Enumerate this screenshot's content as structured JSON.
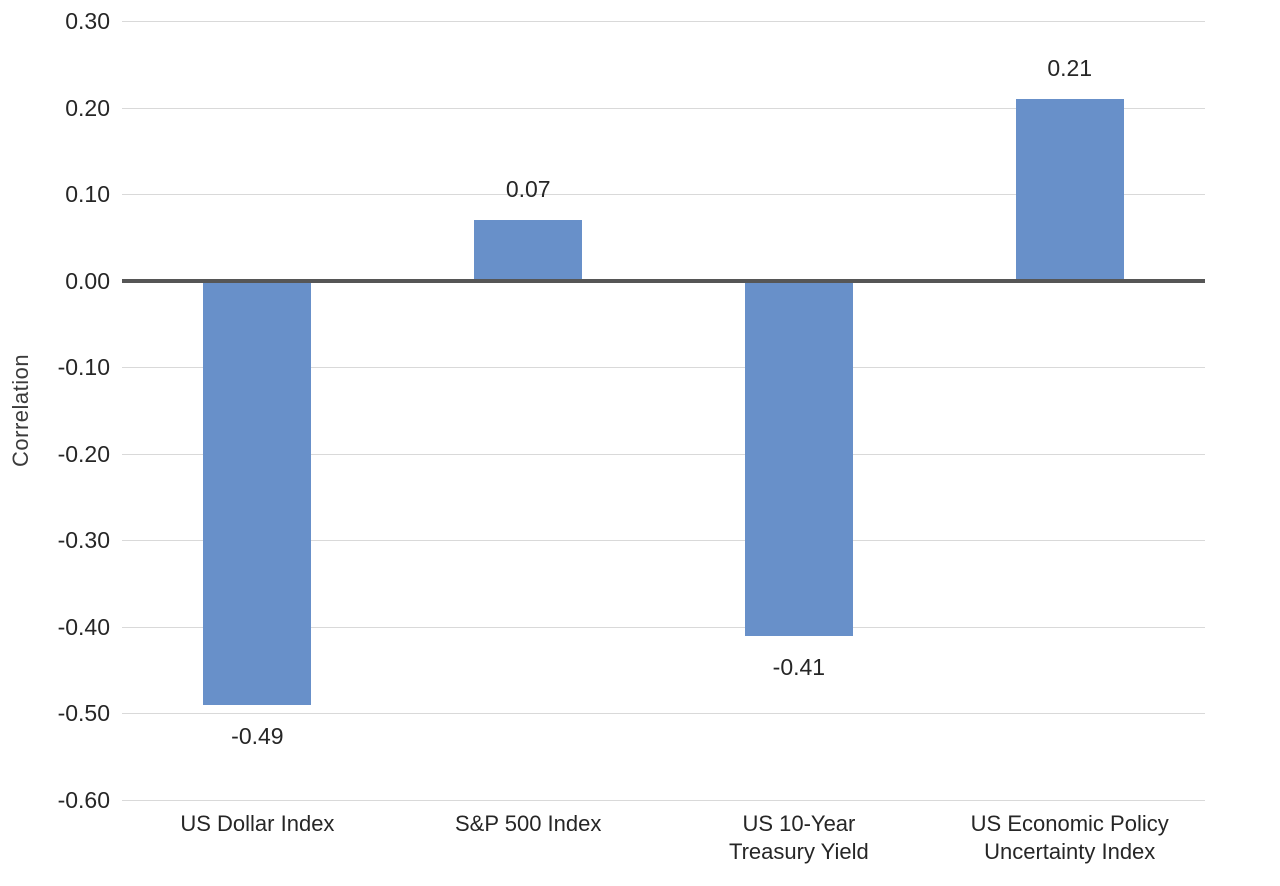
{
  "chart_data": {
    "type": "bar",
    "title": "",
    "xlabel": "",
    "ylabel": "Correlation",
    "categories": [
      [
        "US Dollar Index"
      ],
      [
        "S&P 500 Index"
      ],
      [
        "US 10-Year",
        "Treasury Yield"
      ],
      [
        "US Economic Policy",
        "Uncertainty Index"
      ]
    ],
    "values": [
      -0.49,
      0.07,
      -0.41,
      0.21
    ],
    "data_labels": [
      "-0.49",
      "0.07",
      "-0.41",
      "0.21"
    ],
    "ylim": [
      -0.6,
      0.3
    ],
    "ytick_values": [
      0.3,
      0.2,
      0.1,
      0.0,
      -0.1,
      -0.2,
      -0.3,
      -0.4,
      -0.5,
      -0.6
    ],
    "ytick_labels": [
      "0.30",
      "0.20",
      "0.10",
      "0.00",
      "-0.10",
      "-0.20",
      "-0.30",
      "-0.40",
      "-0.50",
      "-0.60"
    ],
    "grid": true,
    "legend": "none",
    "bar_color": "#6890c9",
    "gridline_color": "#d9d9d9",
    "zero_line_color": "#565656",
    "text_color": "#262626"
  }
}
